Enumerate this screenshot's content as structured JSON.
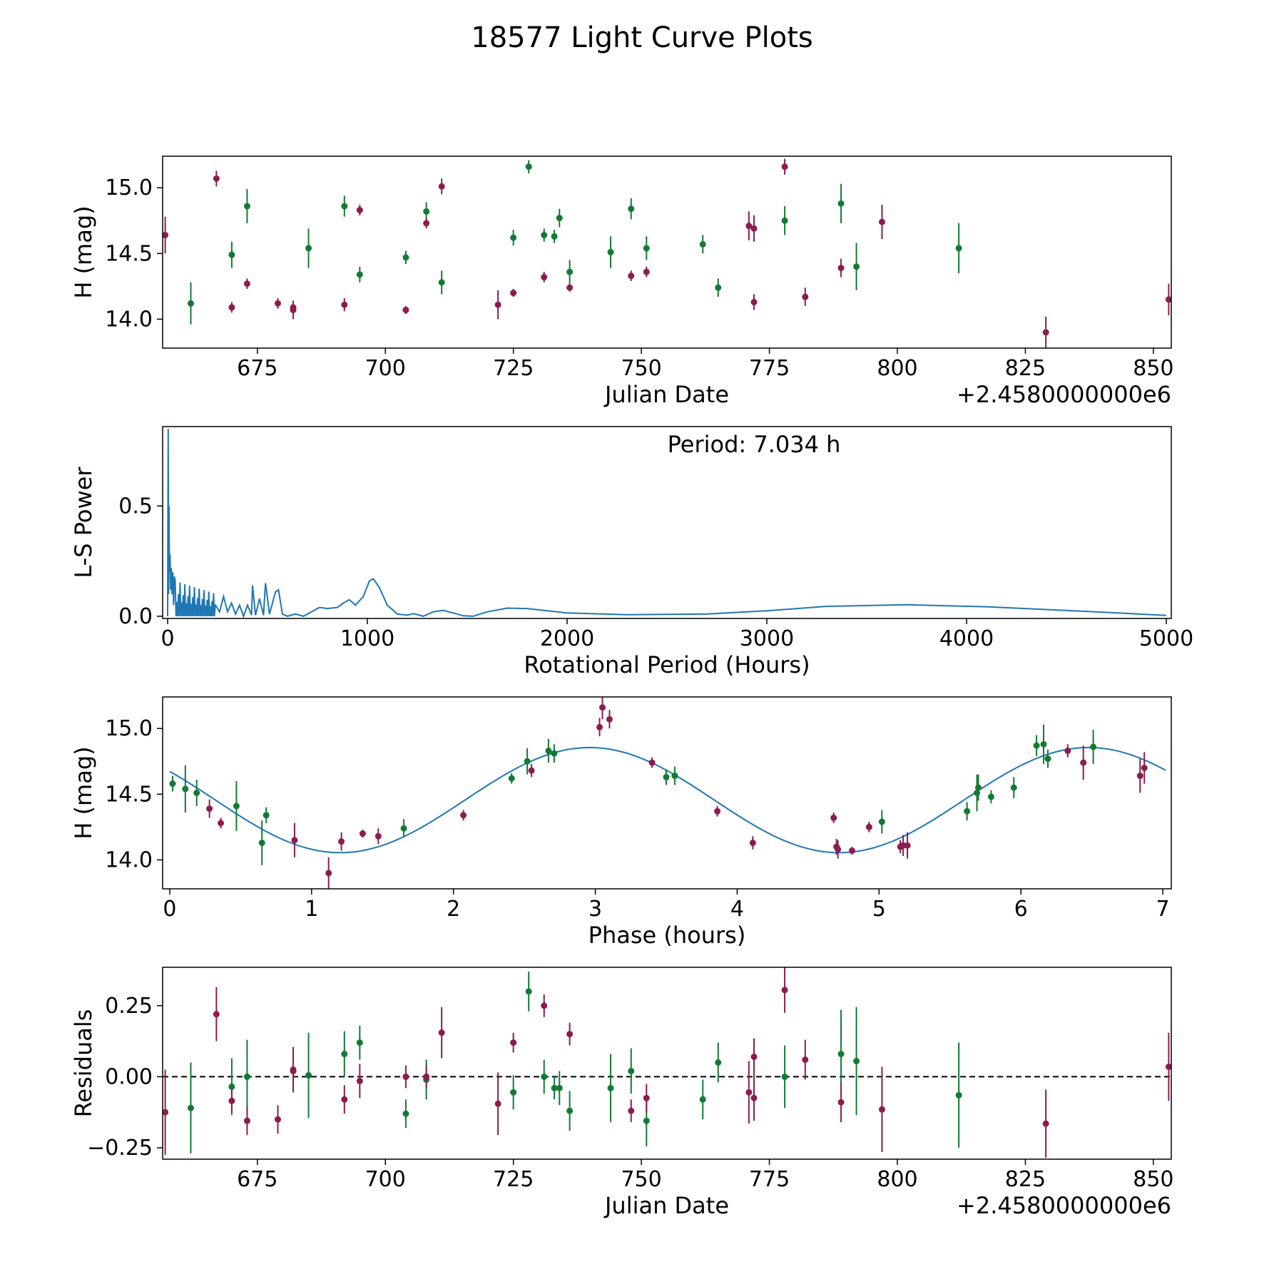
{
  "figure": {
    "title": "18577 Light Curve Plots"
  },
  "colors": {
    "green": "#127a34",
    "red": "#8b1c4f",
    "line": "#1f77b4",
    "axis": "#000000"
  },
  "chart_data": [
    {
      "id": "lightcurve",
      "type": "scatter",
      "xlabel": "Julian Date",
      "ylabel": "H (mag)",
      "offset_label": "+2.4580000000e6",
      "xlim": [
        656.5,
        853.5
      ],
      "ylim": [
        13.78,
        15.24
      ],
      "xticks": [
        675,
        700,
        725,
        750,
        775,
        800,
        825,
        850
      ],
      "xtick_labels": [
        "675",
        "700",
        "725",
        "750",
        "775",
        "800",
        "825",
        "850"
      ],
      "yticks": [
        14.0,
        14.5,
        15.0
      ],
      "ytick_labels": [
        "14.0",
        "14.5",
        "15.0"
      ],
      "series": [
        {
          "name": "green",
          "color": "green",
          "x": [
            662.0,
            670.0,
            673.0,
            685.0,
            692.0,
            695.0,
            704.0,
            708.0,
            711.0,
            725.0,
            728.0,
            731.0,
            733.0,
            734.0,
            736.0,
            744.0,
            748.0,
            751.0,
            762.0,
            765.0,
            778.0,
            789.0,
            792.0,
            812.0
          ],
          "y": [
            14.12,
            14.49,
            14.86,
            14.54,
            14.86,
            14.34,
            14.47,
            14.82,
            14.28,
            14.62,
            15.16,
            14.64,
            14.63,
            14.77,
            14.36,
            14.51,
            14.84,
            14.54,
            14.57,
            14.24,
            14.75,
            14.88,
            14.4,
            14.54
          ],
          "err": [
            0.16,
            0.1,
            0.13,
            0.15,
            0.08,
            0.06,
            0.05,
            0.07,
            0.09,
            0.06,
            0.05,
            0.05,
            0.05,
            0.07,
            0.09,
            0.12,
            0.08,
            0.09,
            0.07,
            0.07,
            0.11,
            0.15,
            0.18,
            0.19
          ]
        },
        {
          "name": "red",
          "color": "red",
          "x": [
            657.0,
            667.0,
            670.0,
            673.0,
            679.0,
            682.0,
            682.0,
            692.0,
            695.0,
            704.0,
            708.0,
            711.0,
            722.0,
            725.0,
            731.0,
            736.0,
            748.0,
            751.0,
            771.0,
            772.0,
            772.0,
            778.0,
            782.0,
            789.0,
            797.0,
            829.0,
            853.0
          ],
          "y": [
            14.64,
            15.07,
            14.09,
            14.27,
            14.12,
            14.09,
            14.07,
            14.11,
            14.83,
            14.07,
            14.73,
            15.01,
            14.11,
            14.2,
            14.32,
            14.24,
            14.33,
            14.36,
            14.71,
            14.69,
            14.13,
            15.16,
            14.17,
            14.39,
            14.74,
            13.9,
            14.15
          ],
          "err": [
            0.14,
            0.06,
            0.04,
            0.04,
            0.04,
            0.05,
            0.07,
            0.05,
            0.04,
            0.03,
            0.04,
            0.06,
            0.11,
            0.03,
            0.04,
            0.03,
            0.04,
            0.04,
            0.11,
            0.1,
            0.06,
            0.06,
            0.07,
            0.07,
            0.13,
            0.12,
            0.12
          ]
        }
      ]
    },
    {
      "id": "periodogram",
      "type": "line",
      "xlabel": "Rotational Period (Hours)",
      "ylabel": "L-S Power",
      "annotation": "Period: 7.034 h",
      "xlim": [
        -25,
        5025
      ],
      "ylim": [
        -0.01,
        0.86
      ],
      "xticks": [
        0,
        1000,
        2000,
        3000,
        4000,
        5000
      ],
      "xtick_labels": [
        "0",
        "1000",
        "2000",
        "3000",
        "4000",
        "5000"
      ],
      "yticks": [
        0.0,
        0.5
      ],
      "ytick_labels": [
        "0.0",
        "0.5"
      ],
      "smooth_points": [
        [
          240,
          0.05
        ],
        [
          260,
          0.02
        ],
        [
          280,
          0.09
        ],
        [
          300,
          0.02
        ],
        [
          320,
          0.06
        ],
        [
          340,
          0.01
        ],
        [
          360,
          0.05
        ],
        [
          380,
          0.0
        ],
        [
          400,
          0.05
        ],
        [
          420,
          0.005
        ],
        [
          425,
          0.14
        ],
        [
          440,
          0.005
        ],
        [
          460,
          0.08
        ],
        [
          480,
          0.005
        ],
        [
          490,
          0.15
        ],
        [
          510,
          0.01
        ],
        [
          540,
          0.11
        ],
        [
          555,
          0.12
        ],
        [
          575,
          0.01
        ],
        [
          600,
          0.0
        ],
        [
          640,
          0.01
        ],
        [
          680,
          0.0
        ],
        [
          720,
          0.02
        ],
        [
          760,
          0.04
        ],
        [
          800,
          0.035
        ],
        [
          850,
          0.04
        ],
        [
          880,
          0.06
        ],
        [
          910,
          0.075
        ],
        [
          940,
          0.05
        ],
        [
          980,
          0.09
        ],
        [
          1010,
          0.16
        ],
        [
          1030,
          0.17
        ],
        [
          1060,
          0.13
        ],
        [
          1100,
          0.05
        ],
        [
          1150,
          0.01
        ],
        [
          1200,
          0.005
        ],
        [
          1230,
          0.012
        ],
        [
          1280,
          0.0
        ],
        [
          1330,
          0.02
        ],
        [
          1380,
          0.027
        ],
        [
          1430,
          0.015
        ],
        [
          1480,
          0.002
        ],
        [
          1530,
          0.0
        ],
        [
          1600,
          0.02
        ],
        [
          1700,
          0.037
        ],
        [
          1800,
          0.035
        ],
        [
          2000,
          0.015
        ],
        [
          2300,
          0.007
        ],
        [
          2700,
          0.01
        ],
        [
          3000,
          0.025
        ],
        [
          3300,
          0.045
        ],
        [
          3700,
          0.052
        ],
        [
          4100,
          0.043
        ],
        [
          4600,
          0.022
        ],
        [
          5000,
          0.004
        ]
      ]
    },
    {
      "id": "phased",
      "type": "scatter",
      "xlabel": "Phase (hours)",
      "ylabel": "H (mag)",
      "xlim": [
        -0.05,
        7.06
      ],
      "ylim": [
        13.78,
        15.24
      ],
      "xticks": [
        0,
        1,
        2,
        3,
        4,
        5,
        6,
        7
      ],
      "xtick_labels": [
        "0",
        "1",
        "2",
        "3",
        "4",
        "5",
        "6",
        "7"
      ],
      "yticks": [
        14.0,
        14.5,
        15.0
      ],
      "ytick_labels": [
        "14.0",
        "14.5",
        "15.0"
      ],
      "model": {
        "period": 7.034,
        "mean": 14.455,
        "amplitude": 0.4,
        "phase_max": 2.96
      },
      "series": [
        {
          "name": "green",
          "color": "green",
          "x": [
            0.02,
            0.11,
            0.19,
            0.47,
            0.65,
            0.68,
            1.65,
            2.41,
            2.52,
            2.67,
            2.71,
            3.5,
            3.56,
            5.02,
            5.62,
            5.69,
            5.7,
            5.79,
            5.95,
            6.11,
            6.16,
            6.19,
            6.51
          ],
          "y": [
            14.58,
            14.54,
            14.51,
            14.41,
            14.13,
            14.34,
            14.24,
            14.62,
            14.75,
            14.83,
            14.81,
            14.63,
            14.64,
            14.29,
            14.37,
            14.51,
            14.55,
            14.48,
            14.55,
            14.87,
            14.88,
            14.77,
            14.86
          ],
          "err": [
            0.06,
            0.18,
            0.1,
            0.19,
            0.17,
            0.06,
            0.07,
            0.04,
            0.1,
            0.09,
            0.07,
            0.06,
            0.07,
            0.09,
            0.07,
            0.14,
            0.1,
            0.05,
            0.08,
            0.08,
            0.15,
            0.07,
            0.13
          ]
        },
        {
          "name": "red",
          "color": "red",
          "x": [
            0.28,
            0.36,
            0.88,
            1.12,
            1.21,
            1.36,
            1.47,
            2.07,
            2.55,
            3.03,
            3.05,
            3.1,
            3.4,
            3.86,
            4.11,
            4.68,
            4.7,
            4.71,
            4.81,
            4.93,
            5.15,
            5.17,
            5.2,
            6.33,
            6.44,
            6.84,
            6.87
          ],
          "y": [
            14.39,
            14.28,
            14.15,
            13.9,
            14.14,
            14.2,
            14.18,
            14.34,
            14.68,
            15.01,
            15.16,
            15.07,
            14.74,
            14.37,
            14.13,
            14.32,
            14.1,
            14.08,
            14.07,
            14.25,
            14.1,
            14.11,
            14.11,
            14.83,
            14.74,
            14.64,
            14.7
          ],
          "err": [
            0.07,
            0.04,
            0.13,
            0.12,
            0.07,
            0.03,
            0.06,
            0.04,
            0.05,
            0.07,
            0.09,
            0.07,
            0.04,
            0.04,
            0.05,
            0.04,
            0.06,
            0.07,
            0.03,
            0.04,
            0.05,
            0.08,
            0.1,
            0.05,
            0.13,
            0.13,
            0.12
          ]
        }
      ]
    },
    {
      "id": "residuals",
      "type": "scatter",
      "xlabel": "Julian Date",
      "ylabel": "Residuals",
      "offset_label": "+2.4580000000e6",
      "xlim": [
        656.5,
        853.5
      ],
      "ylim": [
        -0.29,
        0.385
      ],
      "zero_line": 0,
      "xticks": [
        675,
        700,
        725,
        750,
        775,
        800,
        825,
        850
      ],
      "xtick_labels": [
        "675",
        "700",
        "725",
        "750",
        "775",
        "800",
        "825",
        "850"
      ],
      "yticks": [
        -0.25,
        0.0,
        0.25
      ],
      "ytick_labels": [
        "−0.25",
        "0.00",
        "0.25"
      ],
      "series": [
        {
          "name": "green",
          "color": "green",
          "x": [
            662.0,
            670.0,
            673.0,
            685.0,
            692.0,
            695.0,
            704.0,
            708.0,
            725.0,
            728.0,
            731.0,
            733.0,
            734.0,
            736.0,
            744.0,
            748.0,
            751.0,
            762.0,
            765.0,
            778.0,
            789.0,
            792.0,
            812.0
          ],
          "y": [
            -0.11,
            -0.035,
            0.0,
            0.005,
            0.08,
            0.12,
            -0.13,
            -0.01,
            -0.055,
            0.3,
            0.0,
            -0.04,
            -0.04,
            -0.12,
            -0.04,
            0.02,
            -0.155,
            -0.08,
            0.05,
            0.0,
            0.08,
            0.055,
            -0.065
          ],
          "err": [
            0.16,
            0.1,
            0.13,
            0.15,
            0.08,
            0.06,
            0.05,
            0.07,
            0.06,
            0.07,
            0.06,
            0.04,
            0.06,
            0.07,
            0.12,
            0.08,
            0.09,
            0.07,
            0.07,
            0.11,
            0.155,
            0.19,
            0.185
          ]
        },
        {
          "name": "red",
          "color": "red",
          "x": [
            657.0,
            667.0,
            670.0,
            673.0,
            679.0,
            682.0,
            682.0,
            692.0,
            695.0,
            704.0,
            708.0,
            711.0,
            722.0,
            725.0,
            731.0,
            736.0,
            748.0,
            751.0,
            771.0,
            772.0,
            772.0,
            778.0,
            782.0,
            789.0,
            797.0,
            829.0,
            853.0
          ],
          "y": [
            -0.125,
            0.22,
            -0.085,
            -0.155,
            -0.15,
            0.02,
            0.025,
            -0.08,
            -0.015,
            0.0,
            0.0,
            0.155,
            -0.095,
            0.12,
            0.25,
            0.15,
            -0.12,
            -0.075,
            -0.055,
            0.07,
            -0.075,
            0.305,
            0.06,
            -0.09,
            -0.115,
            -0.165,
            0.035
          ],
          "err": [
            0.15,
            0.095,
            0.04,
            0.05,
            0.05,
            0.07,
            0.08,
            0.05,
            0.06,
            0.04,
            0.04,
            0.09,
            0.11,
            0.035,
            0.04,
            0.04,
            0.04,
            0.05,
            0.11,
            0.065,
            0.08,
            0.08,
            0.07,
            0.07,
            0.15,
            0.12,
            0.12
          ]
        }
      ]
    }
  ]
}
